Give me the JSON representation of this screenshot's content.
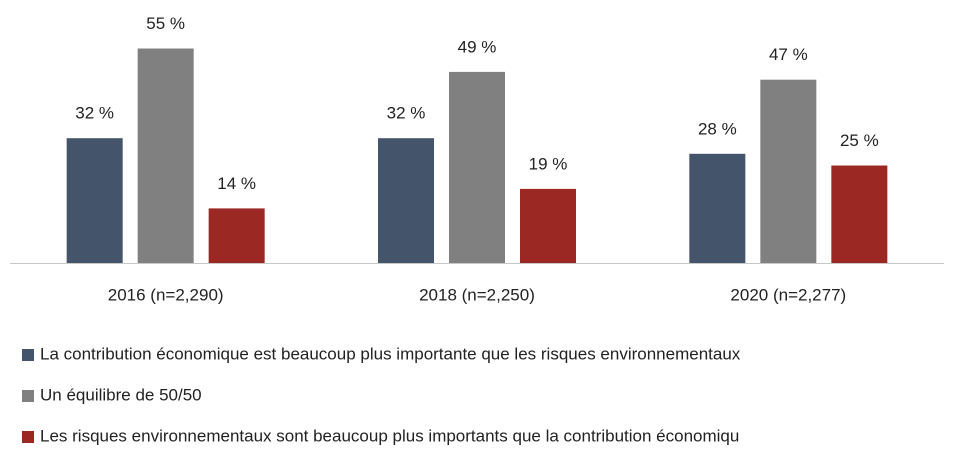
{
  "chart_data": {
    "type": "bar",
    "categories": [
      "2016 (n=2,290)",
      "2018 (n=2,250)",
      "2020 (n=2,277)"
    ],
    "series": [
      {
        "name": "La contribution économique est beaucoup plus importante que les risques environnementaux",
        "color": "#44546a",
        "values": [
          32,
          32,
          28
        ],
        "value_labels": [
          "32 %",
          "32 %",
          "28 %"
        ]
      },
      {
        "name": "Un équilibre de 50/50",
        "color": "#808080",
        "values": [
          55,
          49,
          47
        ],
        "value_labels": [
          "55 %",
          "49 %",
          "47 %"
        ]
      },
      {
        "name": "Les risques environnementaux sont beaucoup plus importants que la contribution économiqu",
        "color": "#9b2823",
        "values": [
          14,
          19,
          25
        ],
        "value_labels": [
          "14 %",
          "19 %",
          "25 %"
        ]
      }
    ],
    "legend": "bottom"
  }
}
